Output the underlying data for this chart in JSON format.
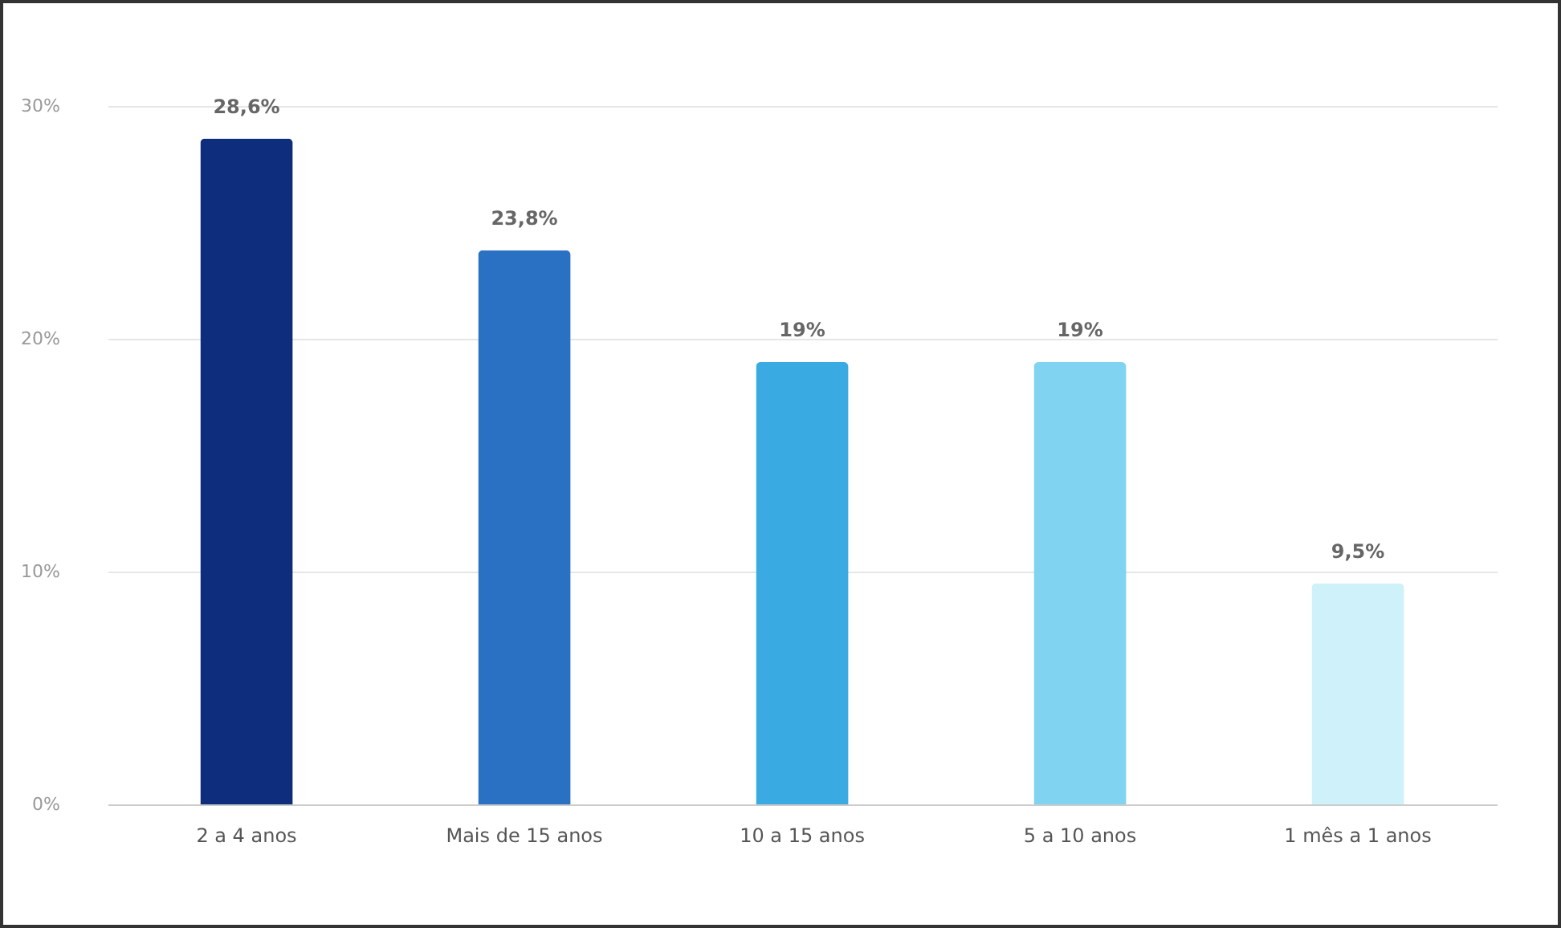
{
  "chart_data": {
    "type": "bar",
    "categories": [
      "2 a 4 anos",
      "Mais de 15 anos",
      "10 a 15 anos",
      "5 a 10 anos",
      "1 mês a 1 anos"
    ],
    "values": [
      28.6,
      23.8,
      19,
      19,
      9.5
    ],
    "colors": [
      "#0f2d7d",
      "#2a71c4",
      "#3aabe2",
      "#80d4f2",
      "#cff1f9"
    ],
    "value_labels": [
      "28,6%",
      "23,8%",
      "19%",
      "19%",
      "9,5%"
    ],
    "ylim": [
      0,
      30
    ],
    "yticks": [
      {
        "value": 0,
        "label": "0%"
      },
      {
        "value": 10,
        "label": "10%"
      },
      {
        "value": 20,
        "label": "20%"
      },
      {
        "value": 30,
        "label": "30%"
      }
    ],
    "grid": "y"
  }
}
